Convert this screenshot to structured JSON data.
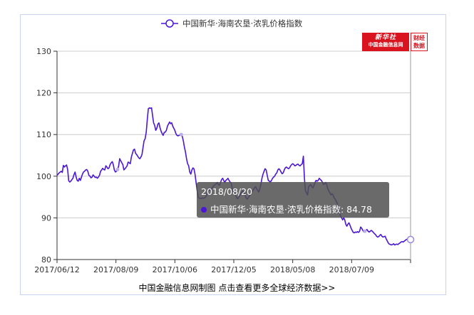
{
  "chart_data": {
    "type": "line",
    "legend_label": "中国新华·海南农垦·浓乳价格指数",
    "legend_position": "top-center",
    "ylim": [
      80,
      130
    ],
    "yticks": [
      80,
      90,
      100,
      110,
      120,
      130
    ],
    "grid": "horizontal",
    "x_tick_labels": [
      "2017/06/12",
      "2017/08/09",
      "2017/10/06",
      "2017/12/05",
      "2018/05/08",
      "2018/07/09"
    ],
    "series": [
      {
        "color": "#4b16d6",
        "values": [
          100.2,
          100.5,
          100.8,
          101.0,
          101.2,
          100.9,
          102.6,
          102.2,
          102.5,
          102.7,
          101.6,
          98.9,
          98.6,
          98.8,
          99.2,
          99.5,
          100.4,
          101.0,
          99.8,
          99.0,
          98.8,
          99.5,
          99.0,
          99.8,
          100.5,
          101.0,
          101.2,
          101.5,
          101.6,
          101.2,
          100.2,
          100.0,
          99.6,
          99.8,
          100.3,
          100.0,
          99.7,
          99.8,
          99.5,
          99.8,
          100.2,
          101.2,
          101.5,
          101.9,
          101.6,
          101.5,
          102.5,
          102.2,
          101.8,
          102.0,
          102.8,
          103.2,
          103.5,
          102.8,
          101.5,
          101.0,
          101.2,
          101.6,
          102.4,
          104.2,
          103.7,
          103.2,
          102.8,
          101.5,
          101.8,
          102.1,
          102.5,
          103.4,
          103.2,
          103.0,
          104.6,
          105.5,
          106.3,
          106.5,
          105.5,
          105.2,
          104.8,
          104.4,
          104.2,
          104.6,
          105.2,
          106.8,
          108.5,
          109.0,
          110.5,
          113.5,
          116.2,
          116.4,
          116.3,
          116.4,
          114.5,
          112.8,
          112.2,
          111.0,
          111.5,
          112.5,
          112.8,
          111.6,
          110.8,
          110.2,
          109.8,
          110.5,
          110.6,
          111.0,
          112.0,
          112.5,
          113.0,
          112.6,
          112.8,
          112.0,
          111.5,
          111.0,
          110.2,
          109.8,
          109.7,
          109.8,
          109.9,
          110.0,
          109.5,
          108.5,
          107.0,
          105.8,
          104.2,
          103.0,
          102.5,
          101.0,
          100.5,
          101.5,
          102.0,
          101.8,
          100.5,
          98.5,
          96.5,
          95.0,
          94.7,
          94.7,
          94.6,
          94.8,
          94.7,
          94.8,
          95.0,
          95.5,
          96.2,
          97.0,
          96.5,
          96.8,
          97.2,
          97.5,
          97.8,
          98.0,
          98.2,
          98.5,
          98.0,
          97.8,
          98.5,
          99.2,
          99.5,
          99.0,
          98.5,
          99.0,
          99.2,
          99.5,
          99.0,
          98.6,
          98.4,
          97.0,
          96.2,
          95.8,
          95.5,
          95.0,
          94.6,
          94.8,
          95.3,
          95.8,
          96.2,
          96.5,
          96.0,
          95.6,
          94.8,
          94.5,
          94.8,
          95.2,
          95.5,
          96.0,
          96.4,
          96.8,
          97.2,
          97.5,
          97.0,
          96.6,
          96.2,
          97.0,
          98.0,
          99.5,
          100.5,
          101.2,
          101.8,
          101.5,
          100.2,
          99.0,
          98.8,
          98.6,
          99.0,
          99.5,
          99.8,
          100.0,
          100.5,
          100.8,
          101.5,
          101.8,
          101.5,
          101.0,
          100.6,
          100.8,
          101.5,
          102.0,
          102.2,
          102.0,
          101.8,
          102.0,
          102.5,
          102.8,
          103.0,
          102.8,
          102.5,
          102.6,
          102.8,
          102.9,
          102.6,
          102.5,
          102.8,
          103.0,
          104.8,
          99.5,
          96.5,
          96.0,
          95.5,
          97.5,
          97.8,
          98.0,
          97.5,
          97.2,
          97.8,
          98.5,
          99.0,
          98.8,
          99.0,
          99.5,
          99.2,
          99.0,
          98.5,
          98.0,
          98.2,
          98.5,
          98.0,
          97.0,
          96.5,
          96.0,
          95.5,
          95.8,
          95.5,
          94.8,
          94.5,
          94.0,
          93.5,
          92.5,
          91.5,
          90.5,
          90.0,
          89.5,
          90.0,
          89.5,
          88.5,
          88.0,
          88.5,
          88.8,
          88.2,
          87.5,
          87.0,
          86.5,
          86.4,
          86.6,
          86.5,
          86.7,
          86.5,
          86.8,
          87.8,
          87.5,
          87.0,
          86.6,
          86.8,
          87.0,
          87.2,
          86.8,
          86.6,
          86.8,
          87.0,
          86.8,
          86.5,
          86.2,
          86.0,
          85.6,
          85.4,
          85.5,
          85.8,
          86.0,
          85.6,
          85.4,
          85.5,
          85.6,
          85.0,
          84.5,
          84.0,
          83.7,
          83.6,
          83.5,
          83.6,
          83.8,
          83.5,
          83.6,
          83.7,
          83.6,
          83.8,
          84.0,
          84.2,
          84.3,
          84.2,
          84.4,
          84.6,
          84.8,
          84.9,
          84.8,
          84.7,
          84.8
        ]
      }
    ],
    "tooltip": {
      "date": "2018/08/20",
      "series": "中国新华·海南农垦·浓乳价格指数",
      "value": "84.78"
    }
  },
  "logo": {
    "name": "新华社",
    "subtitle": "中国金融信息网",
    "badge_line1": "财经",
    "badge_line2": "数据"
  },
  "footer": {
    "text": "中国金融信息网制图 点击查看更多全球经济数据>>"
  },
  "colors": {
    "line": "#4b16d6",
    "frame": "#c9d4ee",
    "logo_red": "#d9141f"
  }
}
